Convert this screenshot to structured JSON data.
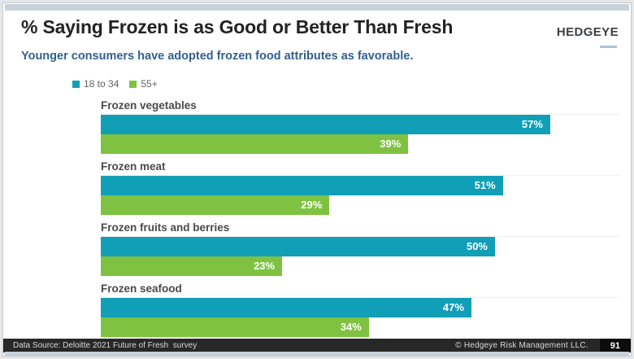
{
  "header": {
    "title": "% Saying Frozen is as Good or Better Than Fresh",
    "subtitle": "Younger consumers have adopted frozen food attributes as favorable.",
    "logo": "HEDGEYE"
  },
  "footer": {
    "source": "Data Source: Deloitte 2021 Future of Fresh  survey",
    "copyright": "© Hedgeye Risk Management LLC.",
    "page": "91"
  },
  "chart_data": {
    "type": "bar",
    "orientation": "horizontal",
    "title": "% Saying Frozen is as Good or Better Than Fresh",
    "categories": [
      "Frozen vegetables",
      "Frozen meat",
      "Frozen fruits and berries",
      "Frozen seafood"
    ],
    "series": [
      {
        "name": "18 to 34",
        "color": "#119FB7",
        "values": [
          57,
          51,
          50,
          47
        ]
      },
      {
        "name": "55+",
        "color": "#7FC241",
        "values": [
          39,
          29,
          23,
          34
        ]
      }
    ],
    "value_suffix": "%",
    "xlim": [
      0,
      66
    ],
    "grid": false,
    "legend_position": "top-left",
    "data_labels": "inside-end"
  },
  "colors": {
    "accent_teal": "#119FB7",
    "accent_green": "#7FC241",
    "subtitle_blue": "#31618F",
    "footer_bg": "#272727",
    "strip_blue_gray": "#C7D2DA"
  }
}
